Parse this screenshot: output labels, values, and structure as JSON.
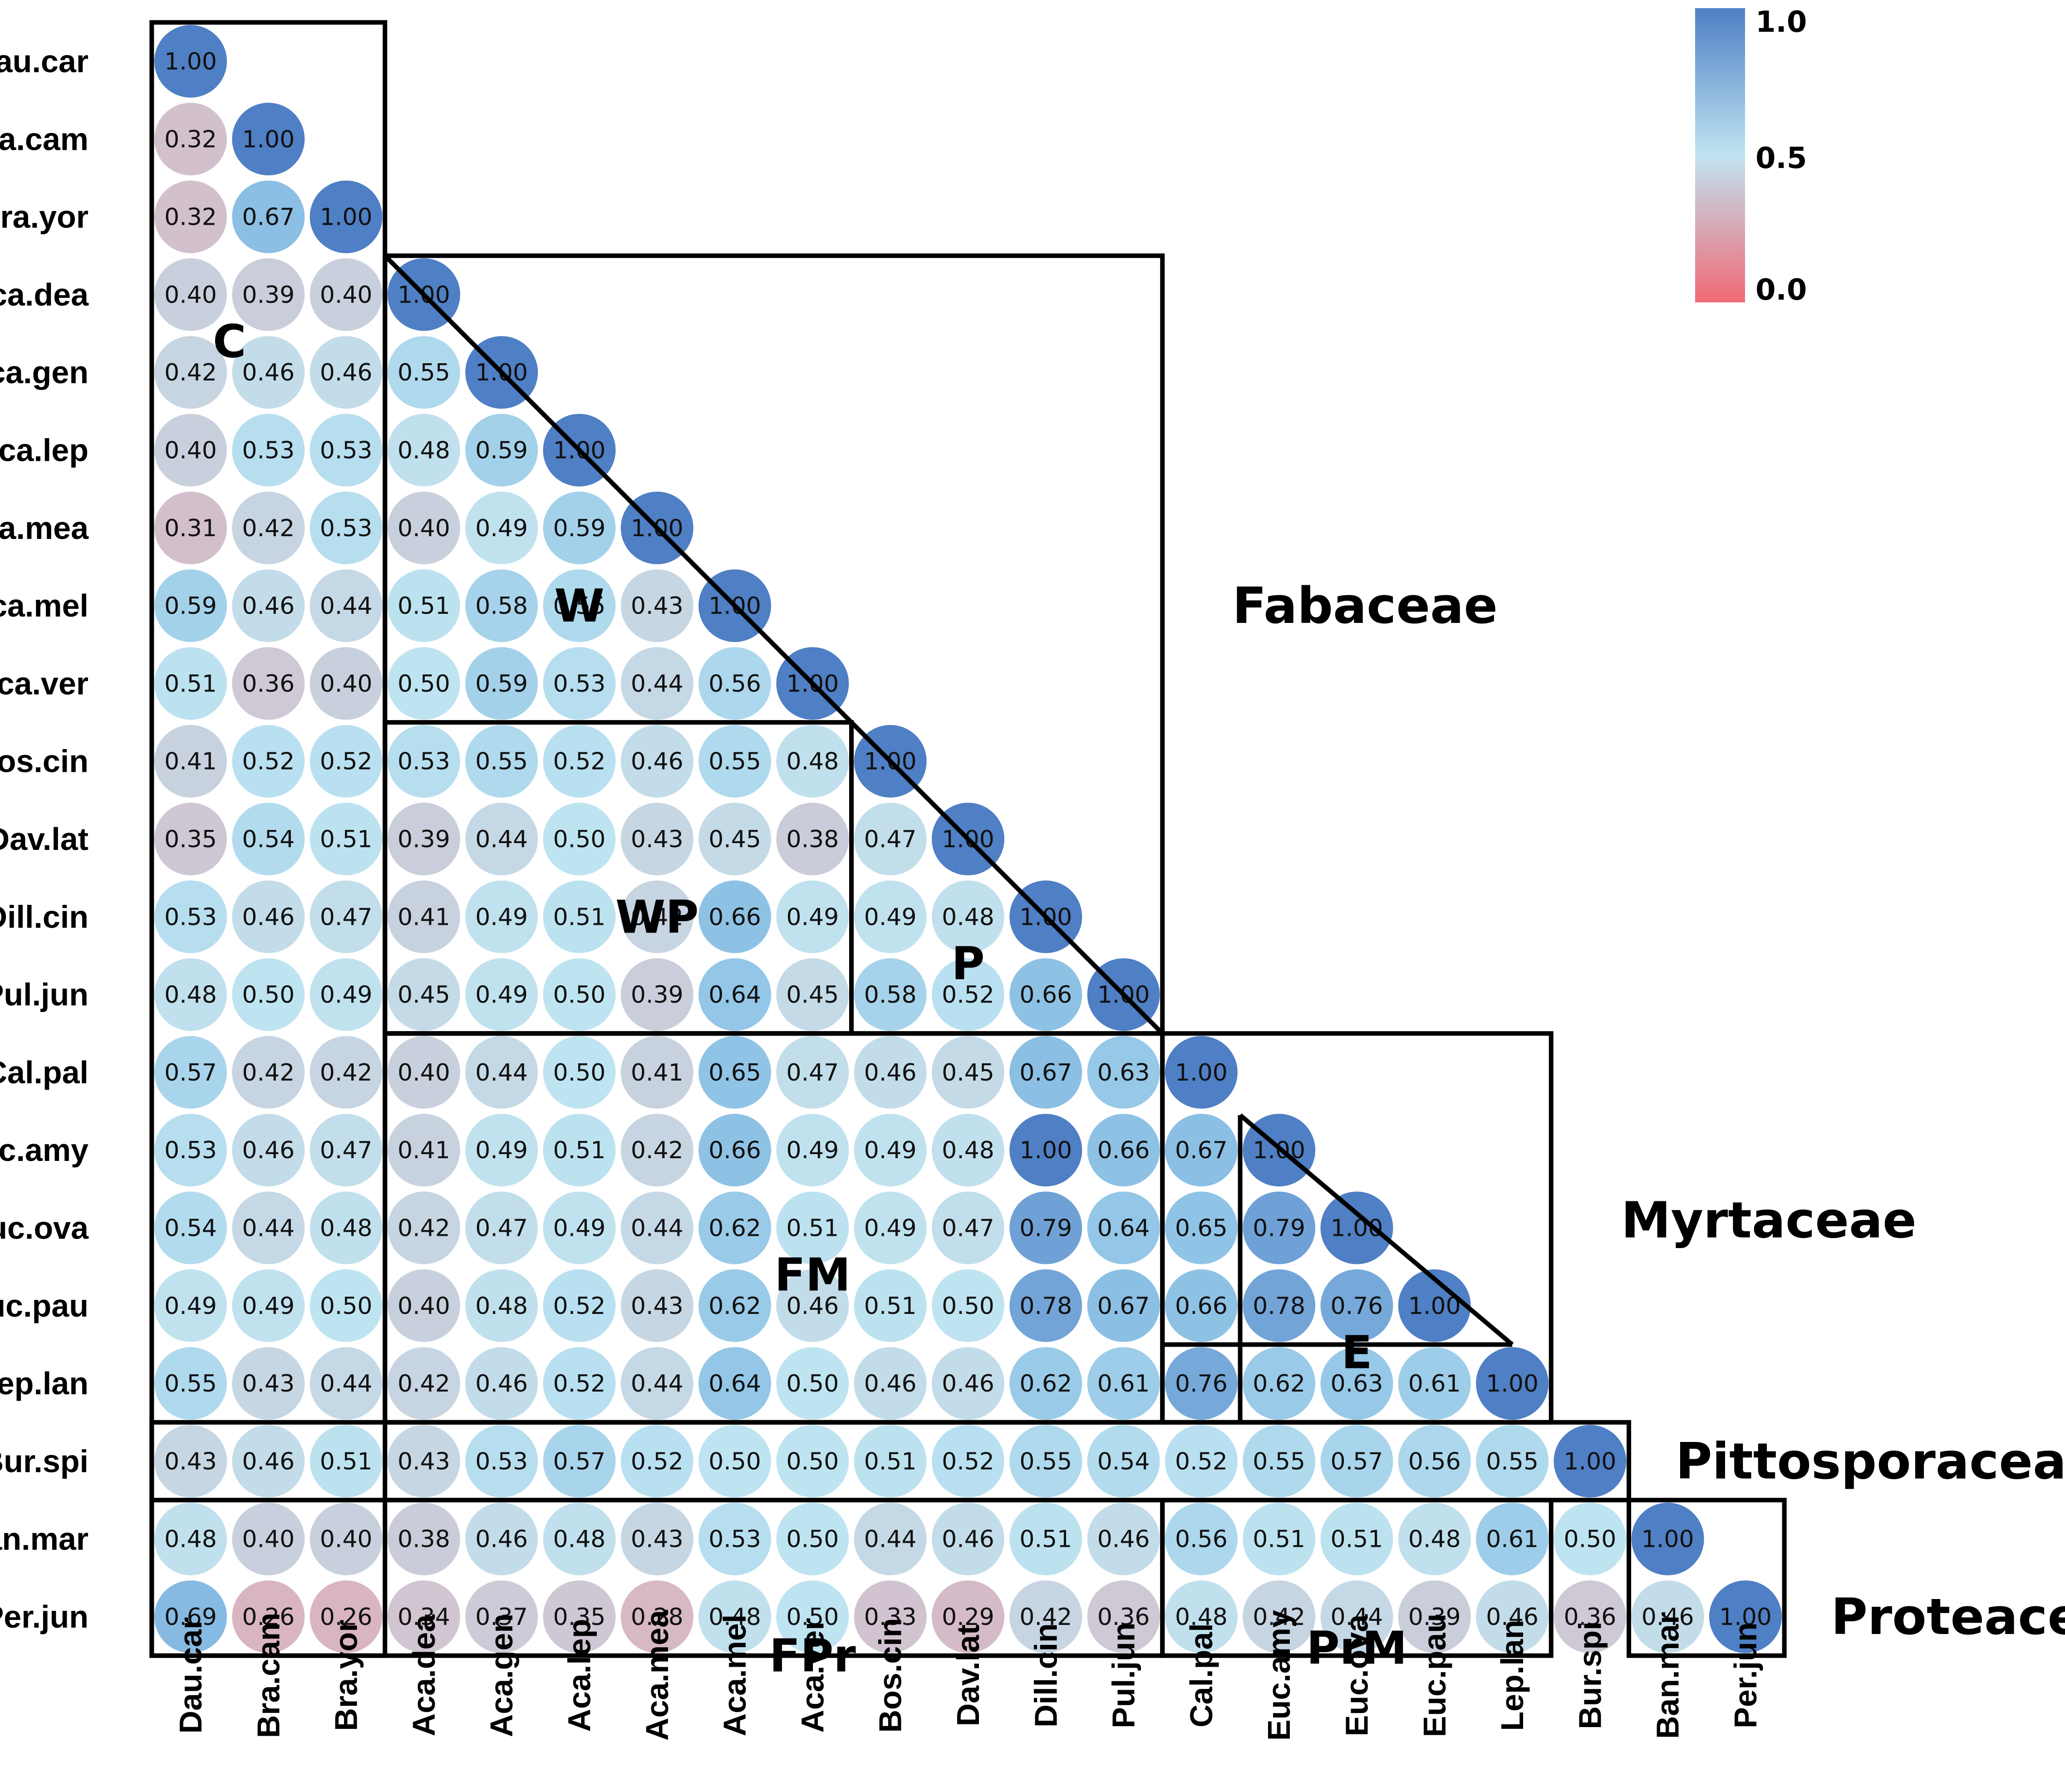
{
  "chart_data": {
    "type": "heatmap",
    "shape": "lower-triangle-circles",
    "species": [
      "Dau.car",
      "Bra.cam",
      "Bra.yor",
      "Aca.dea",
      "Aca.gen",
      "Aca.lep",
      "Aca.mea",
      "Aca.mel",
      "Aca.ver",
      "Bos.cin",
      "Dav.lat",
      "Dill.cin",
      "Pul.jun",
      "Cal.pal",
      "Euc.amy",
      "Euc.ova",
      "Euc.pau",
      "Lep.lan",
      "Bur.spi",
      "Ban.mar",
      "Per.jun"
    ],
    "values": [
      [
        "1.00"
      ],
      [
        "0.32",
        "1.00"
      ],
      [
        "0.32",
        "0.67",
        "1.00"
      ],
      [
        "0.40",
        "0.39",
        "0.40",
        "1.00"
      ],
      [
        "0.42",
        "0.46",
        "0.46",
        "0.55",
        "1.00"
      ],
      [
        "0.40",
        "0.53",
        "0.53",
        "0.48",
        "0.59",
        "1.00"
      ],
      [
        "0.31",
        "0.42",
        "0.53",
        "0.40",
        "0.49",
        "0.59",
        "1.00"
      ],
      [
        "0.59",
        "0.46",
        "0.44",
        "0.51",
        "0.58",
        "0.55",
        "0.43",
        "1.00"
      ],
      [
        "0.51",
        "0.36",
        "0.40",
        "0.50",
        "0.59",
        "0.53",
        "0.44",
        "0.56",
        "1.00"
      ],
      [
        "0.41",
        "0.52",
        "0.52",
        "0.53",
        "0.55",
        "0.52",
        "0.46",
        "0.55",
        "0.48",
        "1.00"
      ],
      [
        "0.35",
        "0.54",
        "0.51",
        "0.39",
        "0.44",
        "0.50",
        "0.43",
        "0.45",
        "0.38",
        "0.47",
        "1.00"
      ],
      [
        "0.53",
        "0.46",
        "0.47",
        "0.41",
        "0.49",
        "0.51",
        "0.42",
        "0.66",
        "0.49",
        "0.49",
        "0.48",
        "1.00"
      ],
      [
        "0.48",
        "0.50",
        "0.49",
        "0.45",
        "0.49",
        "0.50",
        "0.39",
        "0.64",
        "0.45",
        "0.58",
        "0.52",
        "0.66",
        "1.00"
      ],
      [
        "0.57",
        "0.42",
        "0.42",
        "0.40",
        "0.44",
        "0.50",
        "0.41",
        "0.65",
        "0.47",
        "0.46",
        "0.45",
        "0.67",
        "0.63",
        "1.00"
      ],
      [
        "0.53",
        "0.46",
        "0.47",
        "0.41",
        "0.49",
        "0.51",
        "0.42",
        "0.66",
        "0.49",
        "0.49",
        "0.48",
        "1.00",
        "0.66",
        "0.67",
        "1.00"
      ],
      [
        "0.54",
        "0.44",
        "0.48",
        "0.42",
        "0.47",
        "0.49",
        "0.44",
        "0.62",
        "0.51",
        "0.49",
        "0.47",
        "0.79",
        "0.64",
        "0.65",
        "0.79",
        "1.00"
      ],
      [
        "0.49",
        "0.49",
        "0.50",
        "0.40",
        "0.48",
        "0.52",
        "0.43",
        "0.62",
        "0.46",
        "0.51",
        "0.50",
        "0.78",
        "0.67",
        "0.66",
        "0.78",
        "0.76",
        "1.00"
      ],
      [
        "0.55",
        "0.43",
        "0.44",
        "0.42",
        "0.46",
        "0.52",
        "0.44",
        "0.64",
        "0.50",
        "0.46",
        "0.46",
        "0.62",
        "0.61",
        "0.76",
        "0.62",
        "0.63",
        "0.61",
        "1.00"
      ],
      [
        "0.43",
        "0.46",
        "0.51",
        "0.43",
        "0.53",
        "0.57",
        "0.52",
        "0.50",
        "0.50",
        "0.51",
        "0.52",
        "0.55",
        "0.54",
        "0.52",
        "0.55",
        "0.57",
        "0.56",
        "0.55",
        "1.00"
      ],
      [
        "0.48",
        "0.40",
        "0.40",
        "0.38",
        "0.46",
        "0.48",
        "0.43",
        "0.53",
        "0.50",
        "0.44",
        "0.46",
        "0.51",
        "0.46",
        "0.56",
        "0.51",
        "0.51",
        "0.48",
        "0.61",
        "0.50",
        "1.00"
      ],
      [
        "0.69",
        "0.26",
        "0.26",
        "0.34",
        "0.37",
        "0.35",
        "0.28",
        "0.48",
        "0.50",
        "0.33",
        "0.29",
        "0.42",
        "0.36",
        "0.48",
        "0.42",
        "0.44",
        "0.39",
        "0.46",
        "0.36",
        "0.46",
        "1.00"
      ]
    ],
    "value_range": [
      0,
      1
    ],
    "colorbar": {
      "ticks": [
        "1.0",
        "0.5",
        "0.0"
      ],
      "colors": {
        "high": "#4f7fc4",
        "mid": "#bfe4f1",
        "low": "#f06a75"
      }
    },
    "group_labels": [
      {
        "text": "C",
        "row": 3.6,
        "col": 0.5
      },
      {
        "text": "W",
        "row": 7.0,
        "col": 5.0
      },
      {
        "text": "WP",
        "row": 11.0,
        "col": 6.0
      },
      {
        "text": "P",
        "row": 11.6,
        "col": 10.0
      },
      {
        "text": "FM",
        "row": 15.6,
        "col": 8.0
      },
      {
        "text": "E",
        "row": 16.6,
        "col": 15.0
      },
      {
        "text": "FPr",
        "row": 20.5,
        "col": 8.0
      },
      {
        "text": "PrM",
        "row": 20.4,
        "col": 15.0
      }
    ],
    "families": [
      {
        "text": "Fabaceae",
        "row": 7.0,
        "col": 13.4
      },
      {
        "text": "Myrtaceae",
        "row": 14.9,
        "col": 18.4
      },
      {
        "text": "Pittosporaceae",
        "row": 18.0,
        "col": 19.1
      },
      {
        "text": "Proteaceae",
        "row": 20.0,
        "col": 21.1
      }
    ]
  }
}
